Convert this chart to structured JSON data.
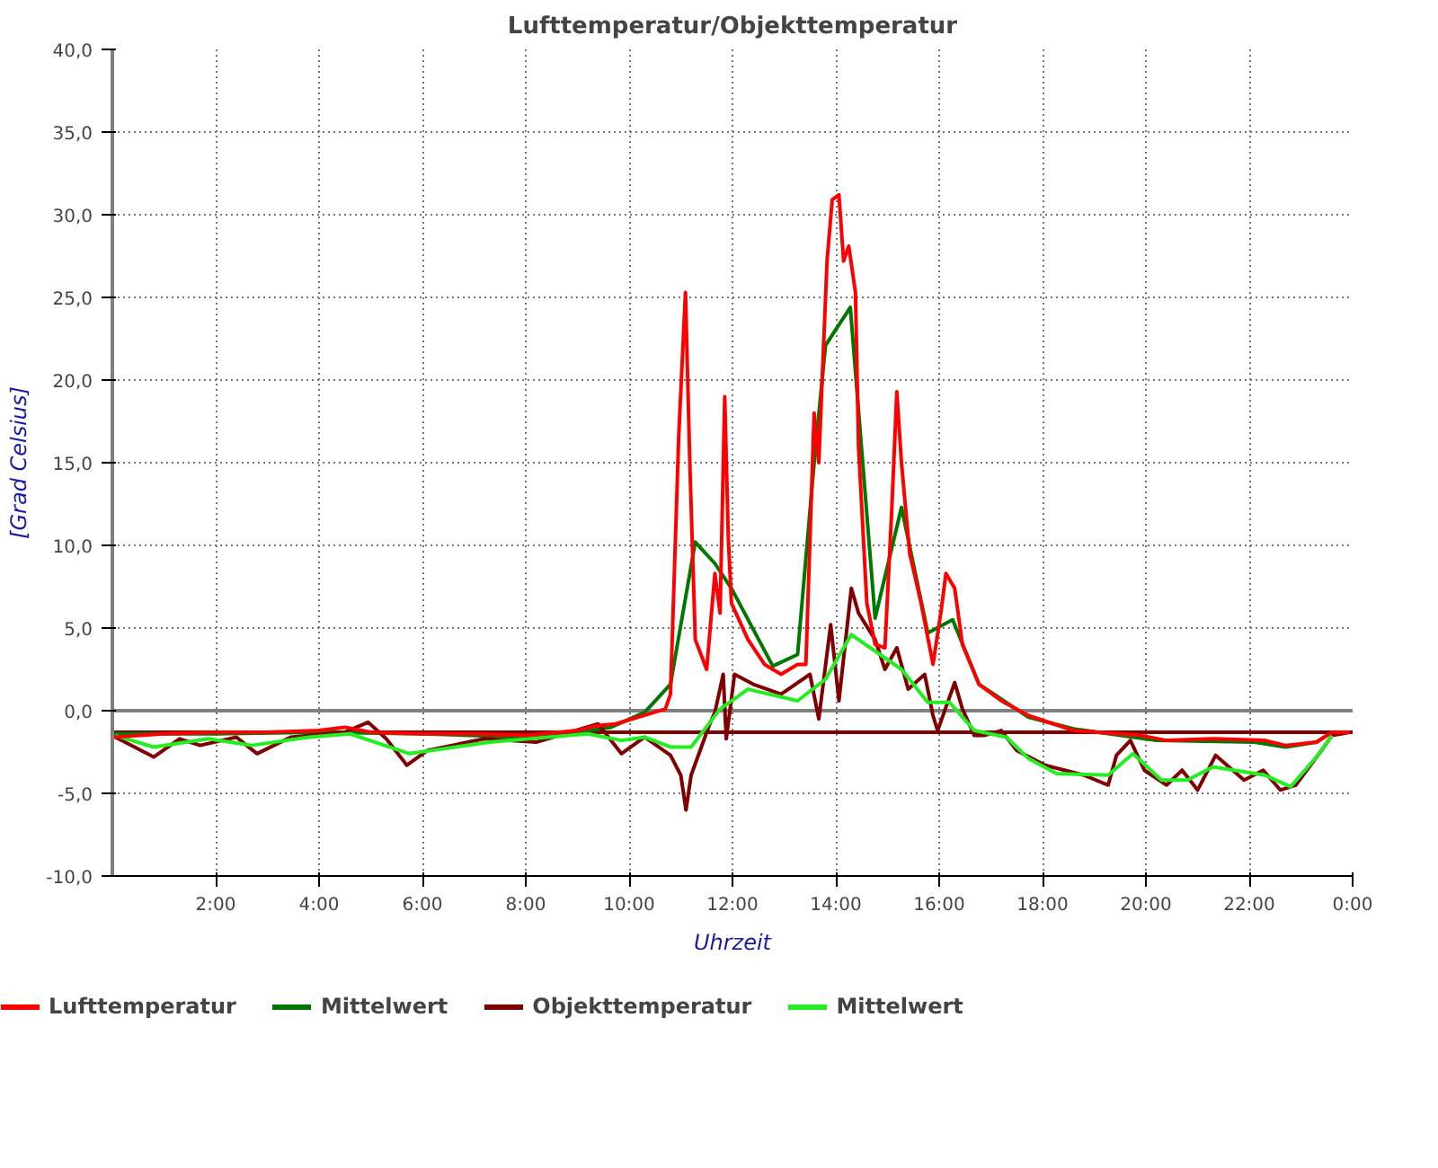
{
  "chart_data": {
    "type": "line",
    "title": "Lufttemperatur/Objekttemperatur",
    "xlabel": "Uhrzeit",
    "ylabel": "[Grad Celsius]",
    "xlim": [
      0,
      24
    ],
    "ylim": [
      -10,
      40
    ],
    "xticks": [
      {
        "value": 2,
        "label": "2:00"
      },
      {
        "value": 4,
        "label": "4:00"
      },
      {
        "value": 6,
        "label": "6:00"
      },
      {
        "value": 8,
        "label": "8:00"
      },
      {
        "value": 10,
        "label": "10:00"
      },
      {
        "value": 12,
        "label": "12:00"
      },
      {
        "value": 14,
        "label": "14:00"
      },
      {
        "value": 16,
        "label": "16:00"
      },
      {
        "value": 18,
        "label": "18:00"
      },
      {
        "value": 20,
        "label": "20:00"
      },
      {
        "value": 22,
        "label": "22:00"
      },
      {
        "value": 24,
        "label": "0:00"
      }
    ],
    "yticks": [
      {
        "value": -10,
        "label": "-10,0"
      },
      {
        "value": -5,
        "label": "-5,0"
      },
      {
        "value": 0,
        "label": "0,0"
      },
      {
        "value": 5,
        "label": "5,0"
      },
      {
        "value": 10,
        "label": "10,0"
      },
      {
        "value": 15,
        "label": "15,0"
      },
      {
        "value": 20,
        "label": "20,0"
      },
      {
        "value": 25,
        "label": "25,0"
      },
      {
        "value": 30,
        "label": "30,0"
      },
      {
        "value": 35,
        "label": "35,0"
      },
      {
        "value": 40,
        "label": "40,0"
      }
    ],
    "grid": true,
    "legend": "bottom",
    "line_style": "solid",
    "ref_lines": [
      {
        "axis": "y",
        "value": 0,
        "color": "#808080"
      },
      {
        "axis": "y",
        "value": -1.3,
        "color": "#800000"
      }
    ],
    "series": [
      {
        "name": "Lufttemperatur",
        "color": "#ff0000",
        "x": [
          0,
          1,
          2,
          3,
          4,
          4.5,
          5,
          6,
          7,
          8,
          9,
          9.4,
          9.74,
          10.7,
          10.8,
          10.96,
          11.09,
          11.18,
          11.28,
          11.5,
          11.66,
          11.76,
          11.85,
          11.92,
          11.98,
          12.3,
          12.62,
          12.94,
          13.26,
          13.42,
          13.58,
          13.67,
          13.83,
          13.93,
          14.06,
          14.15,
          14.25,
          14.38,
          14.44,
          14.6,
          14.76,
          14.95,
          15.08,
          15.18,
          15.27,
          15.43,
          15.65,
          15.88,
          16.04,
          16.13,
          16.3,
          16.45,
          16.77,
          17.2,
          17.73,
          18.6,
          19.9,
          20.4,
          21.3,
          22.3,
          22.7,
          23.3,
          23.6,
          23.95
        ],
        "values": [
          -1.6,
          -1.4,
          -1.3,
          -1.3,
          -1.2,
          -1.0,
          -1.3,
          -1.4,
          -1.4,
          -1.5,
          -1.2,
          -0.9,
          -0.8,
          0.1,
          1.0,
          16.6,
          25.3,
          14.4,
          4.3,
          2.5,
          8.3,
          5.9,
          19.0,
          10.4,
          6.5,
          4.3,
          2.8,
          2.2,
          2.8,
          2.8,
          18.0,
          15.0,
          27.2,
          30.9,
          31.2,
          27.2,
          28.1,
          25.3,
          15.9,
          6.5,
          4.0,
          3.8,
          12.0,
          19.3,
          15.0,
          9.5,
          6.5,
          2.8,
          6.1,
          8.3,
          7.4,
          4.0,
          1.6,
          0.6,
          -0.3,
          -1.2,
          -1.5,
          -1.8,
          -1.7,
          -1.8,
          -2.1,
          -1.9,
          -1.3,
          -1.3
        ]
      },
      {
        "name": "Mittelwert",
        "color": "#007700",
        "x": [
          0,
          2,
          4,
          6,
          8,
          9,
          9.65,
          10.3,
          10.8,
          11.28,
          11.66,
          11.98,
          12.78,
          13.26,
          13.58,
          13.8,
          14.28,
          14.76,
          15.27,
          15.78,
          16.26,
          16.77,
          17.73,
          18.6,
          20.2,
          22.1,
          22.7,
          23.3,
          23.6
        ],
        "values": [
          -1.4,
          -1.4,
          -1.3,
          -1.4,
          -1.6,
          -1.3,
          -1.0,
          -0.1,
          1.6,
          10.2,
          8.9,
          7.4,
          2.7,
          3.4,
          15.0,
          22.1,
          24.4,
          5.6,
          12.3,
          4.7,
          5.5,
          1.6,
          -0.4,
          -1.1,
          -1.8,
          -1.9,
          -2.2,
          -1.9,
          -1.3
        ]
      },
      {
        "name": "Objekttemperatur",
        "color": "#800000",
        "x": [
          0.06,
          0.8,
          1.3,
          1.7,
          2.4,
          2.8,
          3.45,
          4.5,
          4.95,
          5.3,
          5.7,
          6.1,
          7.2,
          8.2,
          9.4,
          9.85,
          10.3,
          10.8,
          11.0,
          11.1,
          11.2,
          11.56,
          11.66,
          11.82,
          11.88,
          12.04,
          12.4,
          12.94,
          13.5,
          13.67,
          13.9,
          14.06,
          14.3,
          14.44,
          14.76,
          14.95,
          15.18,
          15.4,
          15.72,
          15.88,
          15.97,
          16.3,
          16.45,
          16.68,
          16.87,
          17.2,
          17.5,
          18.05,
          18.8,
          19.27,
          19.43,
          19.7,
          19.97,
          20.4,
          20.7,
          21.0,
          21.35,
          21.9,
          22.27,
          22.6,
          22.9,
          23.4,
          23.6,
          23.95
        ],
        "values": [
          -1.6,
          -2.8,
          -1.7,
          -2.1,
          -1.6,
          -2.6,
          -1.6,
          -1.3,
          -0.7,
          -1.7,
          -3.3,
          -2.4,
          -1.7,
          -1.9,
          -0.8,
          -2.6,
          -1.6,
          -2.7,
          -3.9,
          -6.0,
          -3.9,
          -0.8,
          -0.1,
          2.2,
          -1.7,
          2.2,
          1.6,
          1.0,
          2.2,
          -0.5,
          5.2,
          0.6,
          7.4,
          5.9,
          4.3,
          2.5,
          3.8,
          1.3,
          2.2,
          -0.3,
          -1.2,
          1.7,
          0.1,
          -1.5,
          -1.5,
          -1.2,
          -2.4,
          -3.3,
          -3.9,
          -4.5,
          -2.7,
          -1.8,
          -3.6,
          -4.5,
          -3.6,
          -4.8,
          -2.7,
          -4.2,
          -3.6,
          -4.8,
          -4.5,
          -2.4,
          -1.5,
          -1.3
        ]
      },
      {
        "name": "Mittelwert",
        "color": "#22ee22",
        "x": [
          0.06,
          0.8,
          1.86,
          2.7,
          3.8,
          4.6,
          5.75,
          7.3,
          9.2,
          9.85,
          10.3,
          10.8,
          11.2,
          11.76,
          12.3,
          13.26,
          13.8,
          14.3,
          15.27,
          15.78,
          16.2,
          16.68,
          17.3,
          17.73,
          18.27,
          19.27,
          19.75,
          20.3,
          20.8,
          21.3,
          22.3,
          22.8,
          23.3,
          23.6
        ],
        "values": [
          -1.5,
          -2.2,
          -1.7,
          -2.1,
          -1.6,
          -1.4,
          -2.6,
          -1.9,
          -1.4,
          -1.8,
          -1.6,
          -2.2,
          -2.2,
          0.1,
          1.3,
          0.6,
          1.9,
          4.6,
          2.5,
          0.5,
          0.5,
          -1.2,
          -1.6,
          -2.9,
          -3.8,
          -3.9,
          -2.6,
          -4.2,
          -4.2,
          -3.4,
          -3.9,
          -4.6,
          -2.8,
          -1.5
        ]
      }
    ]
  }
}
